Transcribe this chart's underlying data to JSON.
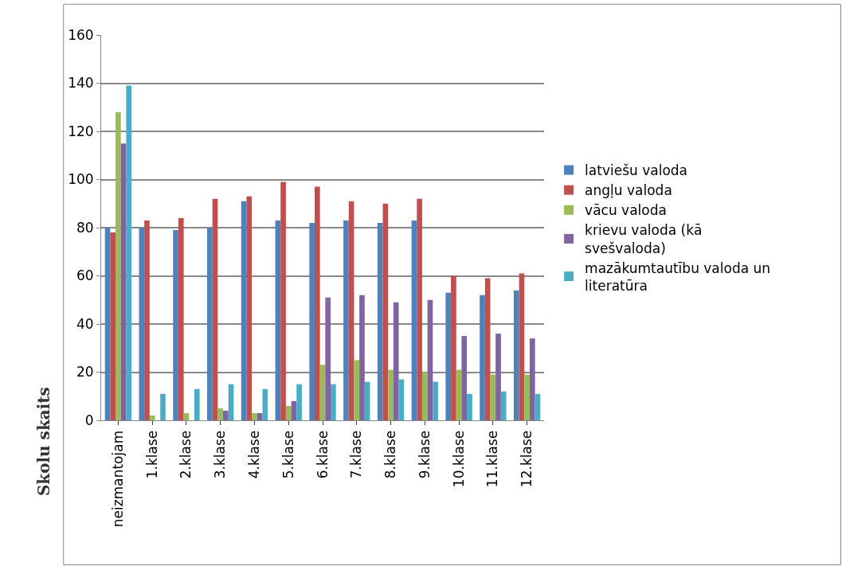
{
  "chart_data": {
    "type": "bar",
    "ylabel": "Skolu skaits",
    "categories": [
      "neizmantojam",
      "1.klase",
      "2.klase",
      "3.klase",
      "4.klase",
      "5.klase",
      "6.klase",
      "7.klase",
      "8.klase",
      "9.klase",
      "10.klase",
      "11.klase",
      "12.klase"
    ],
    "series": [
      {
        "name": "latviešu valoda",
        "color": "#4f81bd",
        "values": [
          80,
          80,
          79,
          80,
          91,
          83,
          82,
          83,
          82,
          83,
          53,
          52,
          54
        ]
      },
      {
        "name": "angļu valoda",
        "color": "#c0504d",
        "values": [
          78,
          83,
          84,
          92,
          93,
          99,
          97,
          91,
          90,
          92,
          60,
          59,
          61
        ]
      },
      {
        "name": "vācu valoda",
        "color": "#9bbb59",
        "values": [
          128,
          2,
          3,
          5,
          3,
          6,
          23,
          25,
          21,
          20,
          21,
          19,
          19
        ]
      },
      {
        "name": "krievu valoda (kā svešvaloda)",
        "color": "#8064a2",
        "values": [
          115,
          0,
          0,
          4,
          3,
          8,
          51,
          52,
          49,
          50,
          35,
          36,
          34
        ]
      },
      {
        "name": "mazākumtautību valoda un literatūra",
        "color": "#4bacc6",
        "values": [
          139,
          11,
          13,
          15,
          13,
          15,
          15,
          16,
          17,
          16,
          11,
          12,
          11
        ]
      }
    ],
    "ylim": [
      0,
      160
    ],
    "yticks": [
      0,
      20,
      40,
      60,
      80,
      100,
      120,
      140,
      160
    ],
    "grid": "y",
    "legend": "right"
  }
}
